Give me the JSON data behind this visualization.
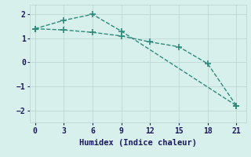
{
  "line1_x": [
    0,
    3,
    6,
    9,
    12,
    15,
    18,
    21
  ],
  "line1_y": [
    1.4,
    1.35,
    1.25,
    1.1,
    0.85,
    0.65,
    -0.05,
    -1.8
  ],
  "line2_x": [
    0,
    3,
    6,
    9,
    21
  ],
  "line2_y": [
    1.4,
    1.75,
    2.0,
    1.3,
    -1.8
  ],
  "color": "#2e8b7a",
  "bg_color": "#d8f0ec",
  "grid_color": "#c0d8d4",
  "xlabel": "Humidex (Indice chaleur)",
  "xlim": [
    -0.5,
    22
  ],
  "ylim": [
    -2.5,
    2.4
  ],
  "xticks": [
    0,
    3,
    6,
    9,
    12,
    15,
    18,
    21
  ],
  "yticks": [
    -2,
    -1,
    0,
    1,
    2
  ],
  "markersize": 3,
  "linewidth": 1.0,
  "xlabel_fontsize": 7.5,
  "tick_fontsize": 7
}
